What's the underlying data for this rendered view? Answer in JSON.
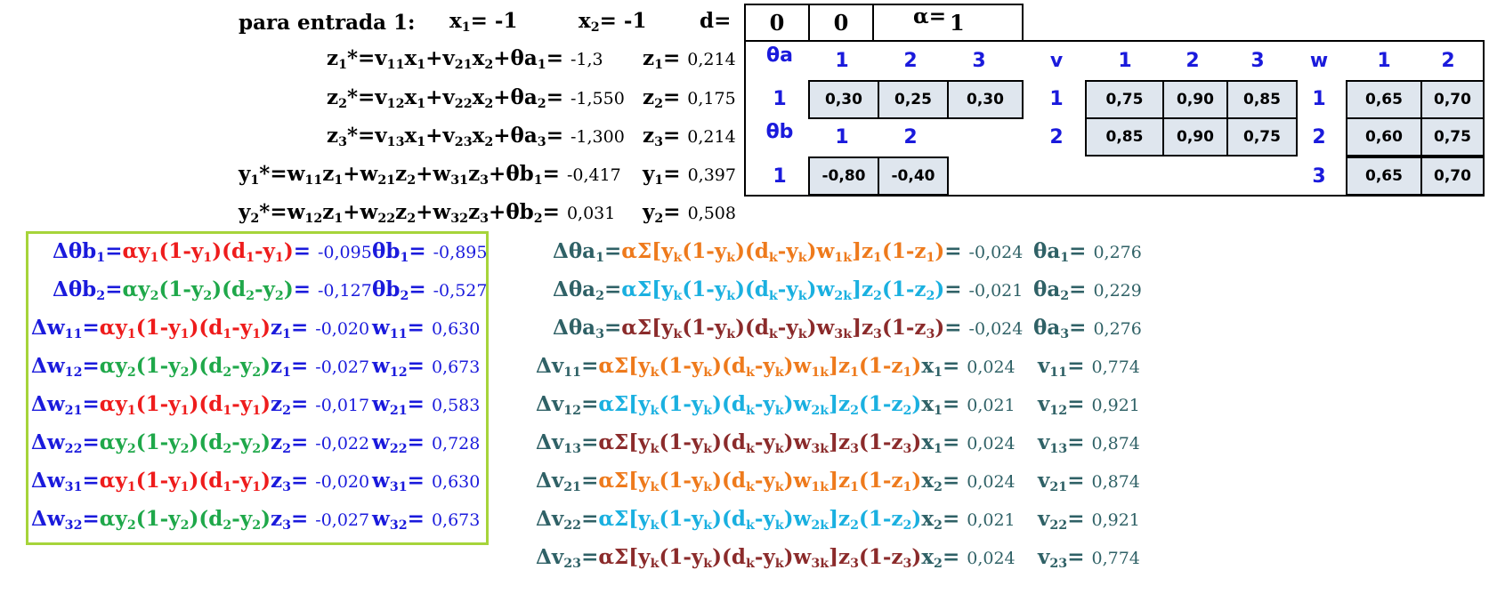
{
  "header": {
    "entrada": "para entrada 1:",
    "x1": "-1",
    "x2": "-1",
    "d_label": "d=",
    "d1": "0",
    "d2": "0",
    "alpha_label": "α=",
    "alpha": "1"
  },
  "forward": {
    "z1s": "-1,3",
    "z2s": "-1,550",
    "z3s": "-1,300",
    "y1s": "-0,417",
    "y2s": "0,031",
    "z1": "0,214",
    "z2": "0,175",
    "z3": "0,214",
    "y1": "0,397",
    "y2": "0,508"
  },
  "tables": {
    "theta_a": {
      "label": "θa",
      "cols": [
        "1",
        "2",
        "3"
      ],
      "row": "1",
      "values": [
        "0,30",
        "0,25",
        "0,30"
      ]
    },
    "theta_b": {
      "label": "θb",
      "cols": [
        "1",
        "2"
      ],
      "row": "1",
      "values": [
        "-0,80",
        "-0,40"
      ]
    },
    "v": {
      "label": "v",
      "cols": [
        "1",
        "2",
        "3"
      ],
      "rows": [
        "1",
        "2"
      ],
      "values": [
        [
          "0,75",
          "0,90",
          "0,85"
        ],
        [
          "0,85",
          "0,90",
          "0,75"
        ]
      ]
    },
    "w": {
      "label": "w",
      "cols": [
        "1",
        "2"
      ],
      "rows": [
        "1",
        "2",
        "3"
      ],
      "values": [
        [
          "0,65",
          "0,70"
        ],
        [
          "0,60",
          "0,75"
        ],
        [
          "0,65",
          "0,70"
        ]
      ]
    }
  },
  "output_updates": {
    "d_theta_b1": "-0,095",
    "theta_b1": "-0,895",
    "d_theta_b2": "-0,127",
    "theta_b2": "-0,527",
    "d_w11": "-0,020",
    "w11": "0,630",
    "d_w12": "-0,027",
    "w12": "0,673",
    "d_w21": "-0,017",
    "w21": "0,583",
    "d_w22": "-0,022",
    "w22": "0,728",
    "d_w31": "-0,020",
    "w31": "0,630",
    "d_w32": "-0,027",
    "w32": "0,673"
  },
  "hidden_updates": {
    "d_theta_a1": "-0,024",
    "theta_a1": "0,276",
    "d_theta_a2": "-0,021",
    "theta_a2": "0,229",
    "d_theta_a3": "-0,024",
    "theta_a3": "0,276",
    "d_v11": "0,024",
    "v11": "0,774",
    "d_v12": "0,021",
    "v12": "0,921",
    "d_v13": "0,024",
    "v13": "0,874",
    "d_v21": "0,024",
    "v21": "0,874",
    "d_v22": "0,021",
    "v22": "0,921",
    "d_v23": "0,024",
    "v23": "0,774"
  },
  "colors": {
    "blue": "#1a1adc",
    "red": "#ee1c1c",
    "green": "#1fa84a",
    "orange": "#ee7a1c",
    "cyan": "#1ab0e0",
    "brown": "#8b2b2b",
    "teal": "#2f6166",
    "lime_border": "#a6d43a",
    "cell_fill": "#dfe6ee"
  }
}
